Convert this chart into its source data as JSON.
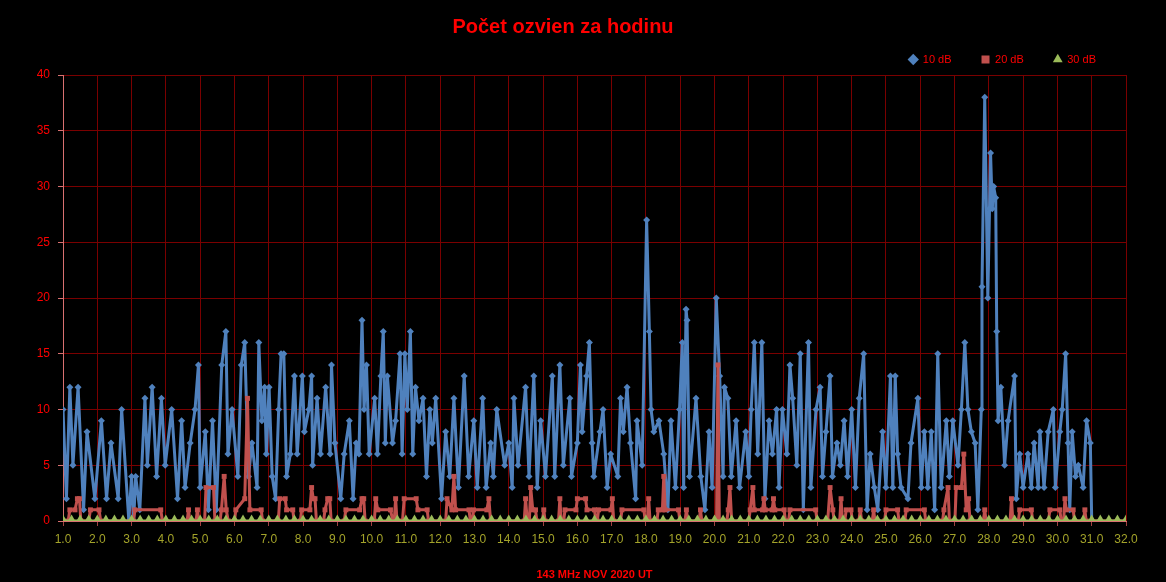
{
  "chart_data": {
    "type": "line",
    "title": "Počet ozvien za hodinu",
    "xlabel": "143 MHz NOV 2020 UT",
    "xlim": [
      1,
      32
    ],
    "xticks": [
      {
        "value": 1,
        "label": "1.0"
      },
      {
        "value": 2,
        "label": "2.0"
      },
      {
        "value": 3,
        "label": "3.0"
      },
      {
        "value": 4,
        "label": "4.0"
      },
      {
        "value": 5,
        "label": "5.0"
      },
      {
        "value": 6,
        "label": "6.0"
      },
      {
        "value": 7,
        "label": "7.0"
      },
      {
        "value": 8,
        "label": "8.0"
      },
      {
        "value": 9,
        "label": "9.0"
      },
      {
        "value": 10,
        "label": "10.0"
      },
      {
        "value": 11,
        "label": "11.0"
      },
      {
        "value": 12,
        "label": "12.0"
      },
      {
        "value": 13,
        "label": "13.0"
      },
      {
        "value": 14,
        "label": "14.0"
      },
      {
        "value": 15,
        "label": "15.0"
      },
      {
        "value": 16,
        "label": "16.0"
      },
      {
        "value": 17,
        "label": "17.0"
      },
      {
        "value": 18,
        "label": "18.0"
      },
      {
        "value": 19,
        "label": "19.0"
      },
      {
        "value": 20,
        "label": "20.0"
      },
      {
        "value": 21,
        "label": "21.0"
      },
      {
        "value": 22,
        "label": "22.0"
      },
      {
        "value": 23,
        "label": "23.0"
      },
      {
        "value": 24,
        "label": "24.0"
      },
      {
        "value": 25,
        "label": "25.0"
      },
      {
        "value": 26,
        "label": "26.0"
      },
      {
        "value": 27,
        "label": "27.0"
      },
      {
        "value": 28,
        "label": "28.0"
      },
      {
        "value": 29,
        "label": "29.0"
      },
      {
        "value": 30,
        "label": "30.0"
      },
      {
        "value": 31,
        "label": "31.0"
      },
      {
        "value": 32,
        "label": "32.0"
      }
    ],
    "ylim": [
      0,
      40
    ],
    "yticks": [
      0,
      5,
      10,
      15,
      20,
      25,
      30,
      35,
      40
    ],
    "grid": true,
    "legend": "top right",
    "series": [
      {
        "name": "10 dB",
        "color": "#4f81bd",
        "marker": "diamond",
        "x": [
          1,
          1.1,
          1.2,
          1.29,
          1.44,
          1.6,
          1.7,
          1.93,
          2.12,
          2.27,
          2.4,
          2.61,
          2.71,
          2.92,
          3,
          3.06,
          3.12,
          3.24,
          3.39,
          3.46,
          3.6,
          3.73,
          3.87,
          3.98,
          4.17,
          4.34,
          4.46,
          4.56,
          4.71,
          4.85,
          4.95,
          5,
          5.15,
          5.24,
          5.36,
          5.47,
          5.63,
          5.75,
          5.81,
          5.93,
          6.1,
          6.2,
          6.3,
          6.41,
          6.51,
          6.66,
          6.71,
          6.8,
          6.88,
          6.93,
          7.01,
          7.1,
          7.2,
          7.29,
          7.36,
          7.44,
          7.52,
          7.63,
          7.75,
          7.83,
          7.98,
          8.04,
          8.17,
          8.25,
          8.28,
          8.41,
          8.51,
          8.66,
          8.79,
          8.83,
          8.93,
          9.1,
          9.2,
          9.35,
          9.46,
          9.55,
          9.63,
          9.72,
          9.78,
          9.85,
          9.93,
          10.09,
          10.17,
          10.27,
          10.34,
          10.4,
          10.46,
          10.61,
          10.7,
          10.83,
          10.89,
          10.97,
          11.04,
          11.13,
          11.2,
          11.28,
          11.38,
          11.5,
          11.6,
          11.7,
          11.77,
          11.87,
          12.04,
          12.16,
          12.28,
          12.4,
          12.53,
          12.7,
          12.83,
          12.98,
          13.08,
          13.24,
          13.34,
          13.47,
          13.55,
          13.65,
          13.88,
          14,
          14.1,
          14.15,
          14.27,
          14.49,
          14.59,
          14.73,
          14.83,
          14.93,
          15.07,
          15.27,
          15.34,
          15.49,
          15.59,
          15.78,
          15.83,
          16,
          16.09,
          16.14,
          16.27,
          16.35,
          16.43,
          16.48,
          16.66,
          16.75,
          16.87,
          16.97,
          17.18,
          17.26,
          17.34,
          17.45,
          17.55,
          17.7,
          17.74,
          17.89,
          18.02,
          18.1,
          18.15,
          18.23,
          18.38,
          18.52,
          18.64,
          18.73,
          18.86,
          18.98,
          19.06,
          19.1,
          19.17,
          19.2,
          19.27,
          19.46,
          19.6,
          19.72,
          19.84,
          19.93,
          20.05,
          20.15,
          20.25,
          20.29,
          20.39,
          20.49,
          20.63,
          20.73,
          20.91,
          21,
          21.07,
          21.16,
          21.26,
          21.38,
          21.47,
          21.59,
          21.69,
          21.81,
          21.88,
          21.98,
          22.11,
          22.2,
          22.28,
          22.4,
          22.5,
          22.59,
          22.74,
          22.81,
          22.96,
          23.08,
          23.15,
          23.25,
          23.37,
          23.44,
          23.57,
          23.67,
          23.78,
          23.88,
          24,
          24.11,
          24.22,
          24.35,
          24.45,
          24.54,
          24.66,
          24.76,
          24.9,
          25,
          25.13,
          25.2,
          25.27,
          25.34,
          25.44,
          25.64,
          25.73,
          25.93,
          26.03,
          26.12,
          26.22,
          26.32,
          26.42,
          26.51,
          26.61,
          26.76,
          26.85,
          26.95,
          27.1,
          27.2,
          27.3,
          27.39,
          27.49,
          27.6,
          27.68,
          27.78,
          27.8,
          27.88,
          27.97,
          28.02,
          28.05,
          28.1,
          28.14,
          28.2,
          28.23,
          28.27,
          28.35,
          28.46,
          28.56,
          28.75,
          28.8,
          28.9,
          29,
          29.14,
          29.24,
          29.32,
          29.44,
          29.49,
          29.61,
          29.73,
          29.88,
          29.94,
          30.07,
          30.14,
          30.24,
          30.31,
          30.36,
          30.43,
          30.53,
          30.61,
          30.75,
          30.85,
          30.96,
          31
        ],
        "values": [
          10,
          2,
          12,
          5,
          12,
          1,
          8,
          2,
          9,
          2,
          7,
          2,
          10,
          0,
          4,
          0,
          4,
          1,
          11,
          5,
          12,
          4,
          11,
          5,
          10,
          2,
          9,
          3,
          7,
          10,
          14,
          3,
          8,
          1,
          9,
          1,
          14,
          17,
          6,
          10,
          4,
          14,
          16,
          4,
          7,
          3,
          16,
          9,
          12,
          6,
          12,
          4,
          2,
          10,
          15,
          15,
          4,
          6,
          13,
          6,
          13,
          8,
          10,
          13,
          5,
          11,
          6,
          12,
          6,
          14,
          7,
          2,
          6,
          9,
          2,
          7,
          6,
          18,
          10,
          14,
          6,
          11,
          6,
          13,
          17,
          7,
          13,
          7,
          9,
          15,
          6,
          15,
          10,
          17,
          6,
          12,
          9,
          11,
          4,
          10,
          7,
          11,
          2,
          8,
          4,
          11,
          3,
          13,
          4,
          9,
          3,
          11,
          3,
          7,
          4,
          10,
          5,
          7,
          3,
          11,
          5,
          12,
          4,
          13,
          3,
          9,
          4,
          13,
          4,
          14,
          5,
          11,
          4,
          7,
          14,
          8,
          13,
          16,
          7,
          4,
          8,
          10,
          3,
          6,
          4,
          11,
          8,
          12,
          7,
          2,
          9,
          5,
          27,
          17,
          10,
          8,
          9,
          6,
          1,
          9,
          3,
          10,
          16,
          3,
          19,
          18,
          4,
          11,
          4,
          1,
          8,
          3,
          20,
          13,
          4,
          12,
          11,
          4,
          9,
          3,
          8,
          4,
          10,
          16,
          6,
          16,
          2,
          9,
          6,
          10,
          3,
          10,
          6,
          14,
          11,
          5,
          15,
          1,
          16,
          3,
          10,
          12,
          4,
          8,
          13,
          4,
          7,
          5,
          9,
          4,
          10,
          3,
          11,
          15,
          1,
          6,
          3,
          1,
          8,
          3,
          13,
          3,
          13,
          6,
          3,
          2,
          7,
          11,
          3,
          8,
          3,
          8,
          1,
          15,
          3,
          9,
          4,
          9,
          5,
          10,
          16,
          10,
          8,
          7,
          1,
          10,
          21,
          38,
          20,
          28,
          33,
          28,
          30,
          29,
          17,
          9,
          12,
          5,
          9,
          13,
          2,
          6,
          3,
          6,
          3,
          7,
          3,
          8,
          3,
          8,
          10,
          3,
          8,
          10,
          15,
          7,
          1,
          8,
          4,
          5,
          3,
          9,
          7,
          0
        ]
      },
      {
        "name": "20 dB",
        "color": "#c0504d",
        "marker": "square",
        "x": [
          1,
          1.15,
          1.2,
          1.35,
          1.42,
          1.48,
          1.52,
          1.75,
          1.8,
          2.05,
          2.1,
          3.05,
          3.1,
          3.85,
          3.9,
          4.62,
          4.66,
          4.7,
          4.88,
          4.92,
          4.96,
          5.13,
          5.17,
          5.39,
          5.43,
          5.58,
          5.62,
          5.7,
          5.76,
          5.82,
          6,
          6.04,
          6.3,
          6.38,
          6.45,
          6.78,
          6.82,
          7.28,
          7.32,
          7.48,
          7.52,
          7.7,
          7.74,
          7.92,
          7.96,
          8.2,
          8.25,
          8.3,
          8.35,
          8.39,
          8.6,
          8.64,
          8.72,
          8.78,
          8.82,
          9.2,
          9.25,
          9.65,
          9.72,
          9.77,
          9.81,
          10.08,
          10.12,
          10.18,
          10.55,
          10.62,
          10.66,
          10.7,
          10.74,
          10.9,
          10.95,
          11.3,
          11.35,
          11.62,
          11.66,
          12.16,
          12.2,
          12.34,
          12.4,
          12.45,
          12.84,
          12.88,
          12.93,
          12.97,
          13.36,
          13.42,
          13.47,
          14.45,
          14.49,
          14.54,
          14.6,
          14.64,
          14.7,
          14.78,
          14.82,
          14.98,
          15.02,
          15.06,
          15.45,
          15.49,
          15.53,
          15.6,
          15.64,
          15.96,
          16,
          16.24,
          16.28,
          16.5,
          16.54,
          16.58,
          16.62,
          16.98,
          17.02,
          17.06,
          17.26,
          17.3,
          17.94,
          17.98,
          18.04,
          18.08,
          18.12,
          18.32,
          18.36,
          18.48,
          18.52,
          18.56,
          18.95,
          18.99,
          19.14,
          19.18,
          19.22,
          19.55,
          19.59,
          19.63,
          20.06,
          20.1,
          20.14,
          20.36,
          20.4,
          20.45,
          20.5,
          21,
          21.04,
          21.12,
          21.16,
          21.4,
          21.44,
          21.48,
          21.68,
          21.72,
          21.76,
          22.03,
          22.07,
          22.16,
          22.2,
          22.95,
          22.99,
          23.3,
          23.37,
          23.45,
          23.49,
          23.65,
          23.69,
          23.73,
          23.8,
          23.84,
          23.98,
          24.02,
          24.21,
          24.25,
          24.29,
          24.6,
          24.64,
          24.68,
          24.96,
          25,
          25.34,
          25.38,
          25.55,
          25.59,
          26.12,
          26.16,
          26.65,
          26.69,
          26.81,
          26.85,
          27.01,
          27.05,
          27.2,
          27.27,
          27.34,
          27.41,
          27.45,
          27.84,
          27.88,
          27.92,
          28.62,
          28.66,
          28.7,
          28.86,
          28.9,
          29.24,
          29.28,
          29.74,
          29.78,
          30.07,
          30.11,
          30.18,
          30.22,
          30.26,
          30.46,
          30.5,
          30.76,
          30.8,
          30.84,
          32
        ],
        "values": [
          0,
          0,
          1,
          1,
          2,
          2,
          0,
          0,
          1,
          1,
          0,
          0,
          1,
          1,
          0,
          0,
          1,
          0,
          0,
          1,
          0,
          0,
          3,
          3,
          0,
          0,
          1,
          4,
          1,
          0,
          0,
          1,
          2,
          11,
          1,
          1,
          0,
          0,
          2,
          2,
          1,
          1,
          0,
          0,
          1,
          1,
          3,
          2,
          2,
          0,
          0,
          1,
          2,
          2,
          0,
          0,
          1,
          1,
          2,
          2,
          0,
          0,
          2,
          1,
          1,
          0,
          0,
          2,
          0,
          0,
          2,
          2,
          1,
          1,
          0,
          0,
          2,
          1,
          4,
          1,
          1,
          0,
          0,
          1,
          1,
          2,
          0,
          0,
          2,
          0,
          0,
          3,
          1,
          1,
          0,
          0,
          1,
          0,
          0,
          2,
          0,
          0,
          1,
          1,
          2,
          2,
          1,
          1,
          0,
          0,
          1,
          1,
          2,
          0,
          0,
          1,
          1,
          0,
          0,
          2,
          0,
          0,
          1,
          1,
          4,
          1,
          1,
          0,
          0,
          1,
          0,
          0,
          1,
          0,
          0,
          14,
          0,
          0,
          1,
          3,
          0,
          0,
          1,
          3,
          1,
          1,
          2,
          1,
          1,
          2,
          1,
          1,
          0,
          0,
          1,
          1,
          0,
          0,
          3,
          1,
          0,
          0,
          2,
          0,
          0,
          1,
          1,
          0,
          0,
          1,
          0,
          0,
          1,
          0,
          0,
          1,
          1,
          0,
          0,
          1,
          1,
          0,
          0,
          1,
          3,
          0,
          0,
          3,
          3,
          6,
          1,
          2,
          0,
          0,
          1,
          0,
          0,
          2,
          0,
          0,
          1,
          1,
          0,
          0,
          1,
          1,
          0,
          0,
          2,
          1,
          1,
          0,
          0,
          1,
          0,
          0
        ]
      },
      {
        "name": "30 dB",
        "color": "#9bbb59",
        "marker": "triangle",
        "x": [
          1,
          1.25,
          1.5,
          1.75,
          2,
          2.25,
          2.5,
          2.75,
          3,
          3.25,
          3.5,
          3.75,
          4,
          4.25,
          4.5,
          4.75,
          5,
          5.25,
          5.5,
          5.75,
          6,
          6.25,
          6.5,
          6.75,
          7,
          7.25,
          7.5,
          7.75,
          8,
          8.25,
          8.5,
          8.75,
          9,
          9.25,
          9.5,
          9.75,
          10,
          10.25,
          10.5,
          10.75,
          11,
          11.25,
          11.5,
          11.75,
          12,
          12.25,
          12.5,
          12.75,
          13,
          13.25,
          13.5,
          13.75,
          14,
          14.25,
          14.5,
          14.75,
          15,
          15.25,
          15.5,
          15.75,
          16,
          16.25,
          16.5,
          16.75,
          17,
          17.25,
          17.5,
          17.75,
          18,
          18.25,
          18.5,
          18.75,
          19,
          19.25,
          19.5,
          19.75,
          20,
          20.25,
          20.5,
          20.75,
          21,
          21.25,
          21.5,
          21.75,
          22,
          22.25,
          22.5,
          22.75,
          23,
          23.25,
          23.5,
          23.75,
          24,
          24.25,
          24.5,
          24.75,
          25,
          25.25,
          25.5,
          25.75,
          26,
          26.25,
          26.5,
          26.75,
          27,
          27.25,
          27.5,
          27.75,
          28,
          28.25,
          28.5,
          28.75,
          29,
          29.25,
          29.5,
          29.75,
          30,
          30.25,
          30.5,
          30.75,
          31,
          31.25,
          31.5,
          31.75,
          32
        ],
        "values": [
          0,
          0,
          0,
          0,
          0,
          0,
          0,
          0,
          0,
          0,
          0,
          0,
          0,
          0,
          0,
          0,
          0,
          0,
          0,
          0,
          0,
          0,
          0,
          0,
          0,
          0,
          0,
          0,
          0,
          0,
          0,
          0,
          0,
          0,
          0,
          0,
          0,
          0,
          0,
          0,
          0,
          0,
          0,
          0,
          0,
          0,
          0,
          0,
          0,
          0,
          0,
          0,
          0,
          0,
          0,
          0,
          0,
          0,
          0,
          0,
          0,
          0,
          0,
          0,
          0,
          0,
          0,
          0,
          0,
          0,
          0,
          0,
          0,
          0,
          0,
          0,
          0,
          0,
          0,
          0,
          0,
          0,
          0,
          0,
          0,
          0,
          0,
          0,
          0,
          0,
          0,
          0,
          0,
          0,
          0,
          0,
          0,
          0,
          0,
          0,
          0,
          0,
          0,
          0,
          0,
          0,
          0,
          0,
          0,
          0,
          0,
          0,
          0,
          0,
          0,
          0,
          0,
          0,
          0,
          0,
          0,
          0,
          0,
          0,
          0
        ]
      }
    ]
  }
}
